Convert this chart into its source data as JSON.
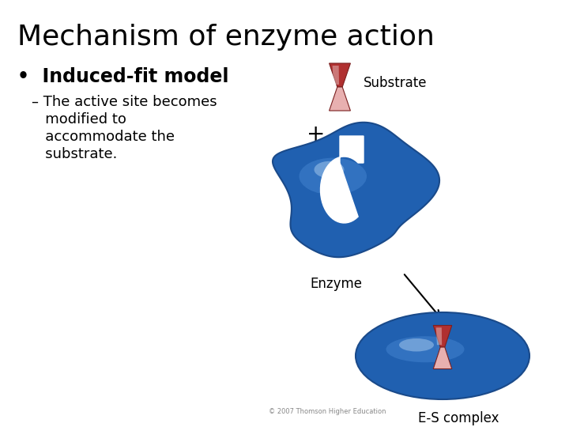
{
  "title": "Mechanism of enzyme action",
  "title_fontsize": 26,
  "bullet_bold": "Induced-fit model",
  "bullet_fontsize": 17,
  "sub_text_lines": [
    "– The active site becomes",
    "   modified to",
    "   accommodate the",
    "   substrate."
  ],
  "sub_fontsize": 13,
  "copyright": "© 2007 Thomson Higher Education",
  "bg_color": "#ffffff",
  "text_color": "#000000",
  "enzyme_dark": "#1a4a8a",
  "enzyme_mid": "#2060b0",
  "enzyme_light": "#4a8ad4",
  "enzyme_shine": "#aaccee",
  "substrate_dark": "#b03030",
  "substrate_mid": "#cc6060",
  "substrate_light": "#e8b0b0",
  "label_fontsize": 12,
  "substrate_label": "Substrate",
  "enzyme_label": "Enzyme",
  "es_label": "E-S complex"
}
